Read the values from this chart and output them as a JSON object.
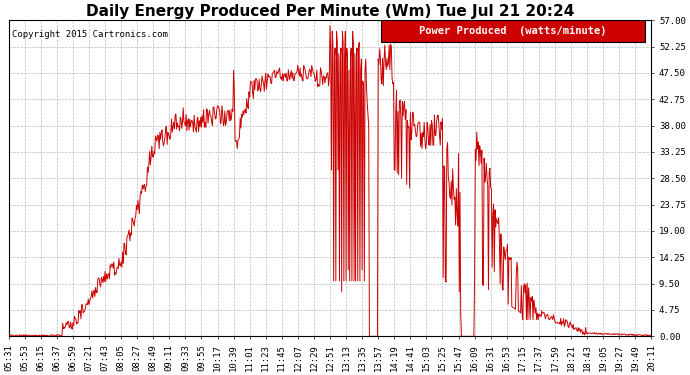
{
  "title": "Daily Energy Produced Per Minute (Wm) Tue Jul 21 20:24",
  "copyright": "Copyright 2015 Cartronics.com",
  "legend_label": "Power Produced  (watts/minute)",
  "legend_bg": "#cc0000",
  "legend_text_color": "#ffffff",
  "line_color": "#cc0000",
  "bg_color": "#ffffff",
  "grid_color": "#bbbbbb",
  "ylim": [
    0,
    57.0
  ],
  "yticks": [
    0.0,
    4.75,
    9.5,
    14.25,
    19.0,
    23.75,
    28.5,
    33.25,
    38.0,
    42.75,
    47.5,
    52.25,
    57.0
  ],
  "xtick_labels": [
    "05:31",
    "05:53",
    "06:15",
    "06:37",
    "06:59",
    "07:21",
    "07:43",
    "08:05",
    "08:27",
    "08:49",
    "09:11",
    "09:33",
    "09:55",
    "10:17",
    "10:39",
    "11:01",
    "11:23",
    "11:45",
    "12:07",
    "12:29",
    "12:51",
    "13:13",
    "13:35",
    "13:57",
    "14:19",
    "14:41",
    "15:03",
    "15:25",
    "15:47",
    "16:09",
    "16:31",
    "16:53",
    "17:15",
    "17:37",
    "17:59",
    "18:21",
    "18:43",
    "19:05",
    "19:27",
    "19:49",
    "20:11"
  ],
  "title_fontsize": 11,
  "axis_fontsize": 6.5,
  "copyright_fontsize": 6.5,
  "legend_fontsize": 7.5
}
